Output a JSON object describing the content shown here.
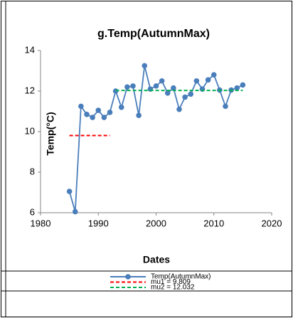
{
  "chart_data": {
    "type": "line",
    "title": "g.Temp(AutumnMax)",
    "x_label": "Dates",
    "y_label": "Temp(°C)",
    "x": [
      1985,
      1986,
      1987,
      1988,
      1989,
      1990,
      1991,
      1992,
      1993,
      1994,
      1995,
      1996,
      1997,
      1998,
      1999,
      2000,
      2001,
      2002,
      2003,
      2004,
      2005,
      2006,
      2007,
      2008,
      2009,
      2010,
      2011,
      2012,
      2013,
      2014,
      2015
    ],
    "series": [
      {
        "name": "Temp(AutumnMax)",
        "color": "#4a7ebb",
        "marker": true,
        "values": [
          7.05,
          6.05,
          11.25,
          10.85,
          10.7,
          11.05,
          10.7,
          10.95,
          12.0,
          11.2,
          12.2,
          12.25,
          10.8,
          13.25,
          12.1,
          12.25,
          12.5,
          11.9,
          12.15,
          11.1,
          11.7,
          11.85,
          12.5,
          12.1,
          12.55,
          12.8,
          12.05,
          11.25,
          12.05,
          12.15,
          12.3
        ]
      },
      {
        "name": "mu1 = 9.809",
        "color": "#ff0000",
        "dashed": true,
        "x": [
          1985,
          1992
        ],
        "values": [
          9.809,
          9.809
        ]
      },
      {
        "name": "mu2 = 12.032",
        "color": "#00b050",
        "dashed": true,
        "x": [
          1993,
          2015
        ],
        "values": [
          12.032,
          12.032
        ]
      }
    ],
    "xlim": [
      1980,
      2020
    ],
    "xticks": [
      1980,
      1990,
      2000,
      2010,
      2020
    ],
    "ylim": [
      6,
      14
    ],
    "yticks": [
      6,
      8,
      10,
      12,
      14
    ],
    "grid": false,
    "legend": "bottom"
  }
}
